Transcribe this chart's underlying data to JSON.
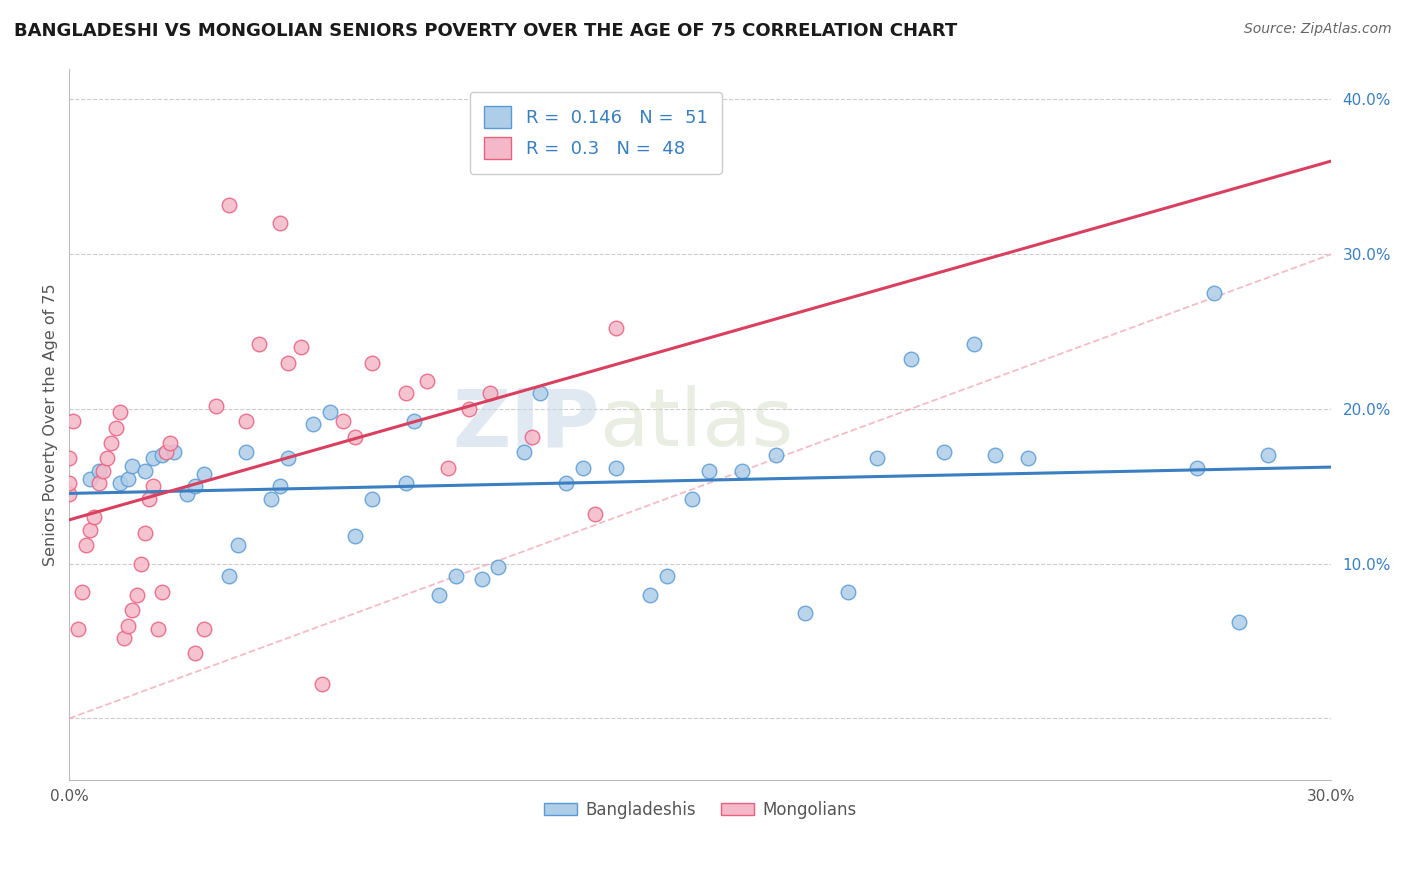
{
  "title": "BANGLADESHI VS MONGOLIAN SENIORS POVERTY OVER THE AGE OF 75 CORRELATION CHART",
  "source": "Source: ZipAtlas.com",
  "ylabel": "Seniors Poverty Over the Age of 75",
  "xlim": [
    0.0,
    0.3
  ],
  "ylim": [
    -0.04,
    0.42
  ],
  "xticks": [
    0.0,
    0.05,
    0.1,
    0.15,
    0.2,
    0.25,
    0.3
  ],
  "yticks_right": [
    0.1,
    0.2,
    0.3,
    0.4
  ],
  "ytick_labels_right": [
    "10.0%",
    "20.0%",
    "30.0%",
    "40.0%"
  ],
  "xtick_labels": [
    "0.0%",
    "",
    "",
    "",
    "",
    "",
    "30.0%"
  ],
  "legend_R": [
    0.146,
    0.3
  ],
  "legend_N": [
    51,
    48
  ],
  "watermark_zip": "ZIP",
  "watermark_atlas": "atlas",
  "bangladeshi_x": [
    0.005,
    0.007,
    0.012,
    0.014,
    0.015,
    0.018,
    0.02,
    0.022,
    0.025,
    0.028,
    0.03,
    0.032,
    0.038,
    0.04,
    0.042,
    0.048,
    0.05,
    0.052,
    0.058,
    0.062,
    0.068,
    0.072,
    0.08,
    0.082,
    0.088,
    0.092,
    0.098,
    0.102,
    0.108,
    0.112,
    0.118,
    0.122,
    0.13,
    0.138,
    0.142,
    0.148,
    0.152,
    0.16,
    0.168,
    0.175,
    0.185,
    0.192,
    0.2,
    0.208,
    0.215,
    0.22,
    0.228,
    0.268,
    0.272,
    0.278,
    0.285
  ],
  "bangladeshi_y": [
    0.155,
    0.16,
    0.152,
    0.155,
    0.163,
    0.16,
    0.168,
    0.17,
    0.172,
    0.145,
    0.15,
    0.158,
    0.092,
    0.112,
    0.172,
    0.142,
    0.15,
    0.168,
    0.19,
    0.198,
    0.118,
    0.142,
    0.152,
    0.192,
    0.08,
    0.092,
    0.09,
    0.098,
    0.172,
    0.21,
    0.152,
    0.162,
    0.162,
    0.08,
    0.092,
    0.142,
    0.16,
    0.16,
    0.17,
    0.068,
    0.082,
    0.168,
    0.232,
    0.172,
    0.242,
    0.17,
    0.168,
    0.162,
    0.275,
    0.062,
    0.17
  ],
  "mongolian_x": [
    0.0,
    0.0,
    0.0,
    0.001,
    0.002,
    0.003,
    0.004,
    0.005,
    0.006,
    0.007,
    0.008,
    0.009,
    0.01,
    0.011,
    0.012,
    0.013,
    0.014,
    0.015,
    0.016,
    0.017,
    0.018,
    0.019,
    0.02,
    0.021,
    0.022,
    0.023,
    0.024,
    0.03,
    0.032,
    0.035,
    0.038,
    0.042,
    0.045,
    0.05,
    0.052,
    0.055,
    0.06,
    0.065,
    0.068,
    0.072,
    0.08,
    0.085,
    0.09,
    0.095,
    0.1,
    0.11,
    0.125,
    0.13
  ],
  "mongolian_y": [
    0.145,
    0.152,
    0.168,
    0.192,
    0.058,
    0.082,
    0.112,
    0.122,
    0.13,
    0.152,
    0.16,
    0.168,
    0.178,
    0.188,
    0.198,
    0.052,
    0.06,
    0.07,
    0.08,
    0.1,
    0.12,
    0.142,
    0.15,
    0.058,
    0.082,
    0.172,
    0.178,
    0.042,
    0.058,
    0.202,
    0.332,
    0.192,
    0.242,
    0.32,
    0.23,
    0.24,
    0.022,
    0.192,
    0.182,
    0.23,
    0.21,
    0.218,
    0.162,
    0.2,
    0.21,
    0.182,
    0.132,
    0.252
  ]
}
